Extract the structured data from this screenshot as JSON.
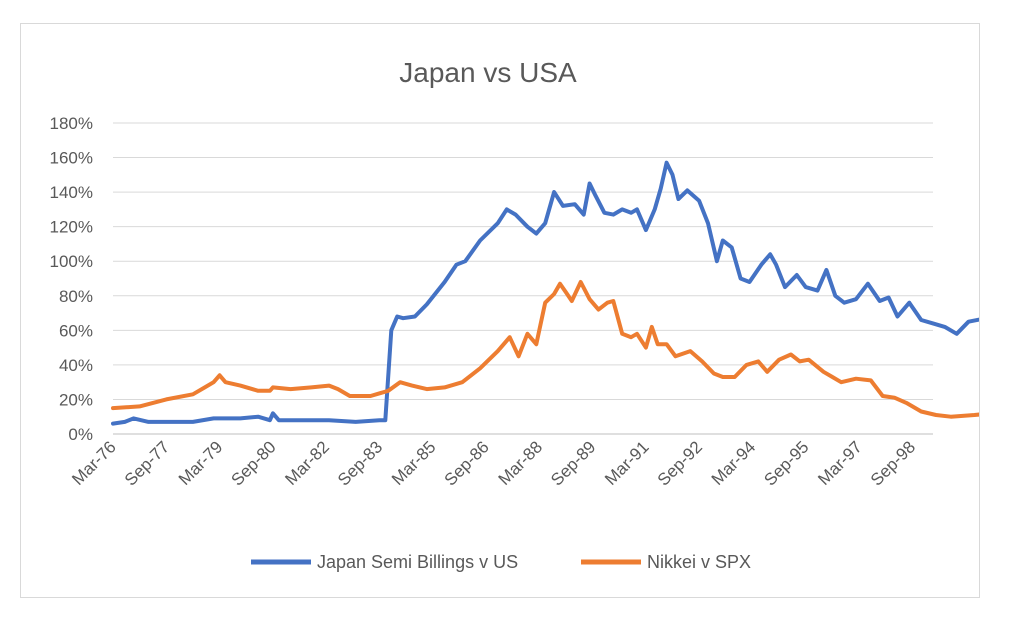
{
  "chart_data": {
    "type": "line",
    "title": "Japan vs USA",
    "xlabel": "",
    "ylabel": "",
    "ylim": [
      0,
      1.8
    ],
    "y_ticks": [
      0,
      0.2,
      0.4,
      0.6,
      0.8,
      1.0,
      1.2,
      1.4,
      1.6,
      1.8
    ],
    "y_tick_labels": [
      "0%",
      "20%",
      "40%",
      "60%",
      "80%",
      "100%",
      "120%",
      "140%",
      "160%",
      "180%"
    ],
    "x_tick_labels": [
      "Mar-76",
      "Sep-77",
      "Mar-79",
      "Sep-80",
      "Mar-82",
      "Sep-83",
      "Mar-85",
      "Sep-86",
      "Mar-88",
      "Sep-89",
      "Mar-91",
      "Sep-92",
      "Mar-94",
      "Sep-95",
      "Mar-97",
      "Sep-98"
    ],
    "x_range": [
      "Mar-76",
      "Apr-99"
    ],
    "grid": "horizontal",
    "legend_position": "bottom",
    "series": [
      {
        "name": "Japan Semi Billings v US",
        "color": "#4472c4",
        "points": [
          [
            "Mar-76",
            0.06
          ],
          [
            "Jul-76",
            0.07
          ],
          [
            "Oct-76",
            0.09
          ],
          [
            "Mar-77",
            0.07
          ],
          [
            "Oct-77",
            0.07
          ],
          [
            "Jun-78",
            0.07
          ],
          [
            "Jan-79",
            0.09
          ],
          [
            "Oct-79",
            0.09
          ],
          [
            "Apr-80",
            0.1
          ],
          [
            "Aug-80",
            0.08
          ],
          [
            "Sep-80",
            0.12
          ],
          [
            "Nov-80",
            0.08
          ],
          [
            "Jun-81",
            0.08
          ],
          [
            "Apr-82",
            0.08
          ],
          [
            "Jan-83",
            0.07
          ],
          [
            "Sep-83",
            0.08
          ],
          [
            "Nov-83",
            0.08
          ],
          [
            "Jan-84",
            0.6
          ],
          [
            "Mar-84",
            0.68
          ],
          [
            "May-84",
            0.67
          ],
          [
            "Sep-84",
            0.68
          ],
          [
            "Jan-85",
            0.75
          ],
          [
            "Jul-85",
            0.88
          ],
          [
            "Nov-85",
            0.98
          ],
          [
            "Feb-86",
            1.0
          ],
          [
            "Jul-86",
            1.12
          ],
          [
            "Jan-87",
            1.22
          ],
          [
            "Apr-87",
            1.3
          ],
          [
            "Jul-87",
            1.27
          ],
          [
            "Nov-87",
            1.2
          ],
          [
            "Feb-88",
            1.16
          ],
          [
            "May-88",
            1.22
          ],
          [
            "Aug-88",
            1.4
          ],
          [
            "Nov-88",
            1.32
          ],
          [
            "Mar-89",
            1.33
          ],
          [
            "Jun-89",
            1.27
          ],
          [
            "Aug-89",
            1.45
          ],
          [
            "Oct-89",
            1.38
          ],
          [
            "Jan-90",
            1.28
          ],
          [
            "Apr-90",
            1.27
          ],
          [
            "Jul-90",
            1.3
          ],
          [
            "Oct-90",
            1.28
          ],
          [
            "Dec-90",
            1.3
          ],
          [
            "Mar-91",
            1.18
          ],
          [
            "Jun-91",
            1.3
          ],
          [
            "Aug-91",
            1.42
          ],
          [
            "Oct-91",
            1.57
          ],
          [
            "Dec-91",
            1.5
          ],
          [
            "Feb-92",
            1.36
          ],
          [
            "May-92",
            1.41
          ],
          [
            "Sep-92",
            1.35
          ],
          [
            "Dec-92",
            1.22
          ],
          [
            "Mar-93",
            1.0
          ],
          [
            "May-93",
            1.12
          ],
          [
            "Aug-93",
            1.08
          ],
          [
            "Nov-93",
            0.9
          ],
          [
            "Feb-94",
            0.88
          ],
          [
            "Jun-94",
            0.98
          ],
          [
            "Sep-94",
            1.04
          ],
          [
            "Nov-94",
            0.98
          ],
          [
            "Feb-95",
            0.85
          ],
          [
            "Jun-95",
            0.92
          ],
          [
            "Sep-95",
            0.85
          ],
          [
            "Jan-96",
            0.83
          ],
          [
            "Apr-96",
            0.95
          ],
          [
            "Jul-96",
            0.8
          ],
          [
            "Oct-96",
            0.76
          ],
          [
            "Feb-97",
            0.78
          ],
          [
            "Jun-97",
            0.87
          ],
          [
            "Oct-97",
            0.77
          ],
          [
            "Jan-98",
            0.79
          ],
          [
            "Apr-98",
            0.68
          ],
          [
            "Aug-98",
            0.76
          ],
          [
            "Dec-98",
            0.66
          ],
          [
            "Apr-99",
            0.64
          ],
          [
            "Aug-99",
            0.62
          ],
          [
            "Dec-99",
            0.58
          ],
          [
            "Apr-00",
            0.65
          ],
          [
            "Oct-00",
            0.67
          ],
          [
            "Mar-01",
            0.68
          ],
          [
            "Jul-01",
            0.74
          ],
          [
            "Sep-01",
            0.72
          ]
        ]
      },
      {
        "name": "Nikkei v SPX",
        "color": "#ed7d31",
        "points": [
          [
            "Mar-76",
            0.15
          ],
          [
            "Dec-76",
            0.16
          ],
          [
            "Sep-77",
            0.2
          ],
          [
            "Jun-78",
            0.23
          ],
          [
            "Oct-78",
            0.27
          ],
          [
            "Jan-79",
            0.3
          ],
          [
            "Mar-79",
            0.34
          ],
          [
            "May-79",
            0.3
          ],
          [
            "Oct-79",
            0.28
          ],
          [
            "Apr-80",
            0.25
          ],
          [
            "Aug-80",
            0.25
          ],
          [
            "Sep-80",
            0.27
          ],
          [
            "Mar-81",
            0.26
          ],
          [
            "Oct-81",
            0.27
          ],
          [
            "Apr-82",
            0.28
          ],
          [
            "Jul-82",
            0.26
          ],
          [
            "Nov-82",
            0.22
          ],
          [
            "Jun-83",
            0.22
          ],
          [
            "Dec-83",
            0.25
          ],
          [
            "Apr-84",
            0.3
          ],
          [
            "Aug-84",
            0.28
          ],
          [
            "Jan-85",
            0.26
          ],
          [
            "Jul-85",
            0.27
          ],
          [
            "Jan-86",
            0.3
          ],
          [
            "Jul-86",
            0.38
          ],
          [
            "Jan-87",
            0.48
          ],
          [
            "May-87",
            0.56
          ],
          [
            "Aug-87",
            0.45
          ],
          [
            "Nov-87",
            0.58
          ],
          [
            "Feb-88",
            0.52
          ],
          [
            "May-88",
            0.76
          ],
          [
            "Aug-88",
            0.81
          ],
          [
            "Oct-88",
            0.87
          ],
          [
            "Dec-88",
            0.82
          ],
          [
            "Feb-89",
            0.77
          ],
          [
            "May-89",
            0.88
          ],
          [
            "Aug-89",
            0.78
          ],
          [
            "Nov-89",
            0.72
          ],
          [
            "Feb-90",
            0.76
          ],
          [
            "Apr-90",
            0.77
          ],
          [
            "Jul-90",
            0.58
          ],
          [
            "Oct-90",
            0.56
          ],
          [
            "Dec-90",
            0.58
          ],
          [
            "Mar-91",
            0.5
          ],
          [
            "May-91",
            0.62
          ],
          [
            "Jul-91",
            0.52
          ],
          [
            "Oct-91",
            0.52
          ],
          [
            "Jan-92",
            0.45
          ],
          [
            "Jun-92",
            0.48
          ],
          [
            "Oct-92",
            0.42
          ],
          [
            "Feb-93",
            0.35
          ],
          [
            "May-93",
            0.33
          ],
          [
            "Sep-93",
            0.33
          ],
          [
            "Jan-94",
            0.4
          ],
          [
            "May-94",
            0.42
          ],
          [
            "Aug-94",
            0.36
          ],
          [
            "Dec-94",
            0.43
          ],
          [
            "Apr-95",
            0.46
          ],
          [
            "Jul-95",
            0.42
          ],
          [
            "Oct-95",
            0.43
          ],
          [
            "Mar-96",
            0.36
          ],
          [
            "Jun-96",
            0.33
          ],
          [
            "Sep-96",
            0.3
          ],
          [
            "Feb-97",
            0.32
          ],
          [
            "Jul-97",
            0.31
          ],
          [
            "Nov-97",
            0.22
          ],
          [
            "Mar-98",
            0.21
          ],
          [
            "Jul-98",
            0.18
          ],
          [
            "Dec-98",
            0.13
          ],
          [
            "May-99",
            0.11
          ],
          [
            "Oct-99",
            0.1
          ],
          [
            "Jun-00",
            0.11
          ],
          [
            "Dec-00",
            0.12
          ],
          [
            "Apr-01",
            0.13
          ],
          [
            "Sep-01",
            0.12
          ]
        ]
      }
    ]
  }
}
